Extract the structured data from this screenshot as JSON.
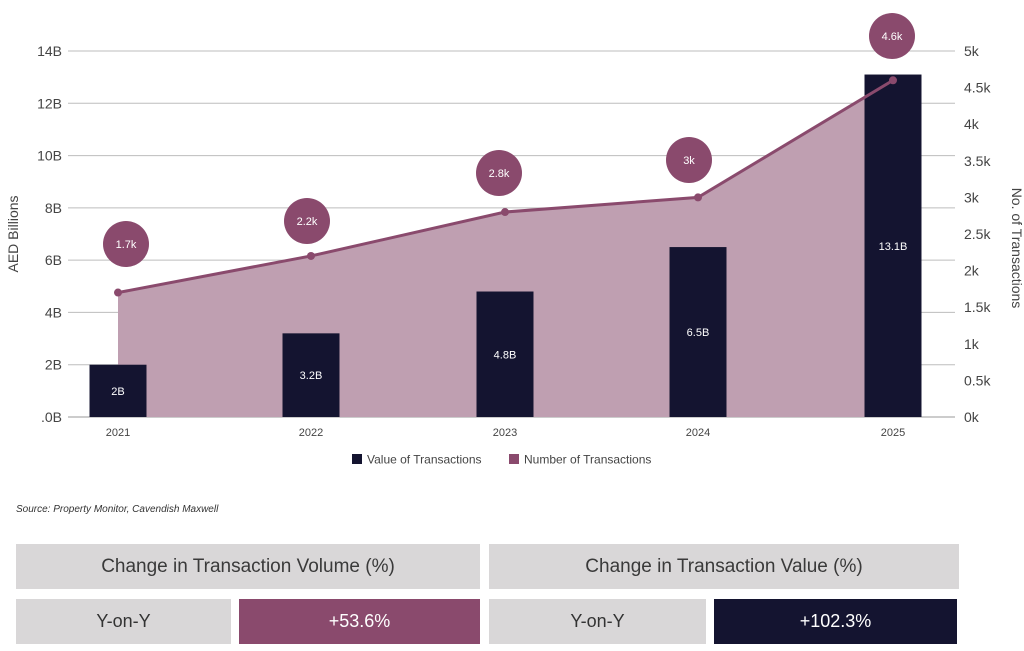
{
  "chart_data": {
    "type": "bar+area-line",
    "categories": [
      "2021",
      "2022",
      "2023",
      "2024",
      "2025"
    ],
    "series": [
      {
        "name": "Value of Transactions",
        "type": "bar",
        "axis": "left",
        "values": [
          2,
          3.2,
          4.8,
          6.5,
          13.1
        ],
        "data_labels": [
          "2B",
          "3.2B",
          "4.8B",
          "6.5B",
          "13.1B"
        ],
        "color": "#141430"
      },
      {
        "name": "Number of Transactions",
        "type": "area-line",
        "axis": "right",
        "values": [
          1.7,
          2.2,
          2.8,
          3,
          4.6
        ],
        "data_labels": [
          "1.7k",
          "2.2k",
          "2.8k",
          "3k",
          "4.6k"
        ],
        "color": "#8a4a6d",
        "fill": "#bf9fb1"
      }
    ],
    "left_axis": {
      "label": "AED Billions",
      "ylim": [
        0,
        14
      ],
      "ticks": [
        ".0B",
        "2B",
        "4B",
        "6B",
        "8B",
        "10B",
        "12B",
        "14B"
      ]
    },
    "right_axis": {
      "label": "No. of Transactions",
      "ylim": [
        0,
        5
      ],
      "ticks": [
        "0k",
        "0.5k",
        "1k",
        "1.5k",
        "2k",
        "2.5k",
        "3k",
        "3.5k",
        "4k",
        "4.5k",
        "5k"
      ]
    },
    "legend": {
      "position": "bottom-center",
      "items": [
        "Value of Transactions",
        "Number of Transactions"
      ]
    },
    "grid": true
  },
  "source": "Source: Property Monitor, Cavendish Maxwell",
  "volume_panel": {
    "title": "Change in Transaction Volume (%)",
    "label": "Y-on-Y",
    "value": "+53.6%"
  },
  "value_panel": {
    "title": "Change in Transaction Value (%)",
    "label": "Y-on-Y",
    "value": "+102.3%"
  }
}
